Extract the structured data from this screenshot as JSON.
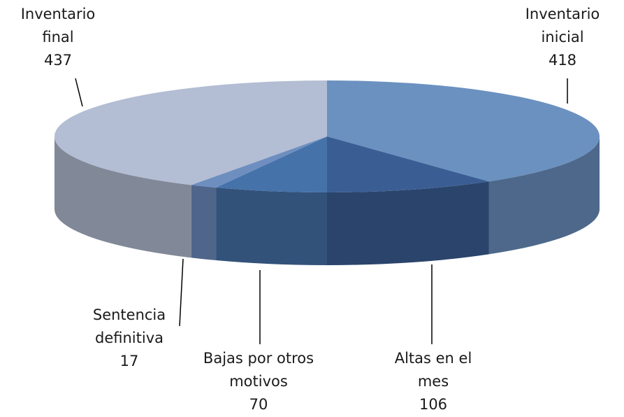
{
  "chart_data": {
    "type": "pie3d",
    "categories": [
      "Inventario inicial",
      "Altas en el mes",
      "Bajas por otros motivos",
      "Sentencia definitiva",
      "Inventario final"
    ],
    "values": [
      418,
      106,
      70,
      17,
      437
    ],
    "colors": [
      "#6b91c0",
      "#3a5e94",
      "#4672aa",
      "#6e8ec0",
      "#b3bdd3"
    ]
  }
}
